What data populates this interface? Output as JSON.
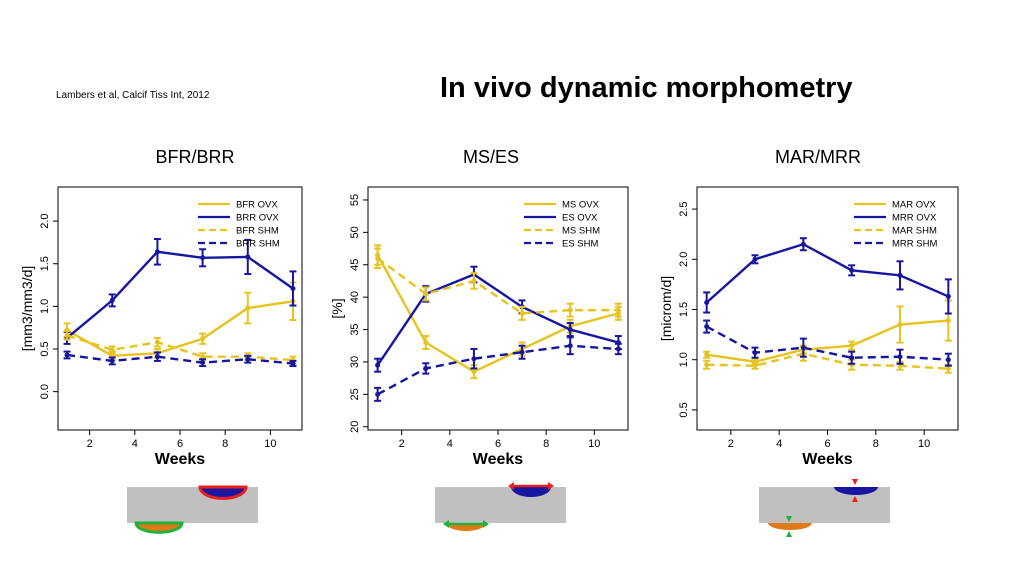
{
  "citation": "Lambers et al, Calcif Tiss Int, 2012",
  "title": "In vivo dynamic morphometry",
  "colors": {
    "yellow": "#e6c31e",
    "blue": "#1616a0",
    "gray": "#c0c0c0",
    "red": "#e8201c",
    "green": "#1db33c",
    "orange": "#e07a18"
  },
  "chart_data": [
    {
      "type": "line",
      "title": "BFR/BRR",
      "xlabel": "Weeks",
      "ylabel": "[mm3/mm3/d]",
      "xlim": [
        0.6,
        11.4
      ],
      "ylim": [
        -0.45,
        2.4
      ],
      "xticks": [
        "2",
        "4",
        "6",
        "8",
        "10"
      ],
      "yticks": [
        "0.0",
        "0.5",
        "1.0",
        "1.5",
        "2.0"
      ],
      "legend_position": "top-right",
      "x": [
        1,
        3,
        5,
        7,
        9,
        11
      ],
      "series": [
        {
          "name": "BFR OVX",
          "color": "yellow",
          "dash": false,
          "values": [
            0.72,
            0.42,
            0.45,
            0.62,
            0.98,
            1.06
          ],
          "err": [
            0.08,
            0.05,
            0.05,
            0.06,
            0.18,
            0.22
          ]
        },
        {
          "name": "BRR OVX",
          "color": "blue",
          "dash": false,
          "values": [
            0.63,
            1.07,
            1.64,
            1.57,
            1.58,
            1.21
          ],
          "err": [
            0.07,
            0.07,
            0.15,
            0.1,
            0.2,
            0.2
          ]
        },
        {
          "name": "BFR SHM",
          "color": "yellow",
          "dash": true,
          "values": [
            0.66,
            0.49,
            0.58,
            0.41,
            0.41,
            0.37
          ],
          "err": [
            0.05,
            0.04,
            0.05,
            0.04,
            0.04,
            0.04
          ]
        },
        {
          "name": "BRR SHM",
          "color": "blue",
          "dash": true,
          "values": [
            0.43,
            0.36,
            0.41,
            0.34,
            0.38,
            0.33
          ],
          "err": [
            0.04,
            0.04,
            0.05,
            0.04,
            0.04,
            0.03
          ]
        }
      ]
    },
    {
      "type": "line",
      "title": "MS/ES",
      "xlabel": "Weeks",
      "ylabel": "[%]",
      "xlim": [
        0.6,
        11.4
      ],
      "ylim": [
        19.5,
        57
      ],
      "xticks": [
        "2",
        "4",
        "6",
        "8",
        "10"
      ],
      "yticks": [
        "20",
        "25",
        "30",
        "35",
        "40",
        "45",
        "50",
        "55"
      ],
      "legend_position": "top-right",
      "x": [
        1,
        3,
        5,
        7,
        9,
        11
      ],
      "series": [
        {
          "name": "MS OVX",
          "color": "yellow",
          "dash": false,
          "values": [
            46.5,
            33.0,
            28.5,
            32.0,
            35.5,
            37.5
          ],
          "err": [
            1.5,
            1.0,
            1.0,
            1.0,
            1.0,
            1.0
          ]
        },
        {
          "name": "ES OVX",
          "color": "blue",
          "dash": false,
          "values": [
            29.5,
            40.5,
            43.5,
            38.5,
            35.0,
            33.0
          ],
          "err": [
            1.0,
            1.2,
            1.2,
            1.0,
            1.0,
            1.0
          ]
        },
        {
          "name": "MS SHM",
          "color": "yellow",
          "dash": true,
          "values": [
            46.0,
            40.5,
            42.5,
            37.5,
            38.0,
            38.0
          ],
          "err": [
            1.5,
            1.0,
            1.2,
            1.0,
            1.0,
            1.0
          ]
        },
        {
          "name": "ES SHM",
          "color": "blue",
          "dash": true,
          "values": [
            25.0,
            29.0,
            30.5,
            31.5,
            32.5,
            32.0
          ],
          "err": [
            1.0,
            0.8,
            1.5,
            1.0,
            1.3,
            0.8
          ]
        }
      ]
    },
    {
      "type": "line",
      "title": "MAR/MRR",
      "xlabel": "Weeks",
      "ylabel": "[microm/d]",
      "xlim": [
        0.6,
        11.4
      ],
      "ylim": [
        0.3,
        2.72
      ],
      "xticks": [
        "2",
        "4",
        "6",
        "8",
        "10"
      ],
      "yticks": [
        "0.5",
        "1.0",
        "1.5",
        "2.0",
        "2.5"
      ],
      "legend_position": "top-right",
      "x": [
        1,
        3,
        5,
        7,
        9,
        11
      ],
      "series": [
        {
          "name": "MAR OVX",
          "color": "yellow",
          "dash": false,
          "values": [
            1.05,
            0.98,
            1.1,
            1.14,
            1.35,
            1.39
          ],
          "err": [
            0.03,
            0.03,
            0.04,
            0.04,
            0.18,
            0.2
          ]
        },
        {
          "name": "MRR OVX",
          "color": "blue",
          "dash": false,
          "values": [
            1.57,
            2.0,
            2.15,
            1.89,
            1.84,
            1.63
          ],
          "err": [
            0.1,
            0.04,
            0.06,
            0.05,
            0.14,
            0.17
          ]
        },
        {
          "name": "MAR SHM",
          "color": "yellow",
          "dash": true,
          "values": [
            0.95,
            0.94,
            1.06,
            0.95,
            0.94,
            0.91
          ],
          "err": [
            0.04,
            0.03,
            0.07,
            0.05,
            0.04,
            0.04
          ]
        },
        {
          "name": "MRR SHM",
          "color": "blue",
          "dash": true,
          "values": [
            1.33,
            1.07,
            1.12,
            1.02,
            1.03,
            1.0
          ],
          "err": [
            0.06,
            0.05,
            0.09,
            0.06,
            0.07,
            0.06
          ]
        }
      ]
    }
  ],
  "diagrams": [
    {
      "icon": "bfr-brr-schematic",
      "outline": "area"
    },
    {
      "icon": "ms-es-schematic",
      "outline": "surface"
    },
    {
      "icon": "mar-mrr-schematic",
      "outline": "rate"
    }
  ]
}
